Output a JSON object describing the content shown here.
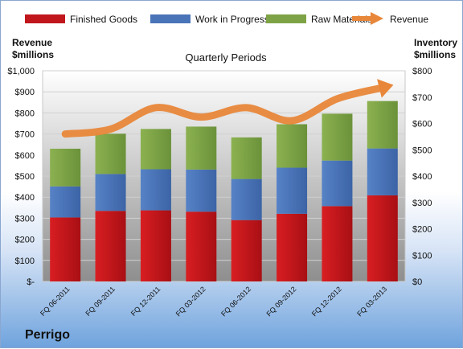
{
  "company": "Perrigo",
  "chart_data": {
    "type": "bar",
    "stacked": true,
    "title": "Quarterly Periods",
    "y_left_label": [
      "Revenue",
      "$millions"
    ],
    "y_right_label": [
      "Inventory",
      "$millions"
    ],
    "y_left_ticks": [
      "$-",
      "$100",
      "$200",
      "$300",
      "$400",
      "$500",
      "$600",
      "$700",
      "$800",
      "$900",
      "$1,000"
    ],
    "y_right_ticks": [
      "$0",
      "$100",
      "$200",
      "$300",
      "$400",
      "$500",
      "$600",
      "$700",
      "$800"
    ],
    "y_left_lim": [
      0,
      1000
    ],
    "y_right_lim": [
      0,
      800
    ],
    "grid": true,
    "legend_position": "top",
    "categories": [
      "FQ 06-2011",
      "FQ 09-2011",
      "FQ 12-2011",
      "FQ 03-2012",
      "FQ 06-2012",
      "FQ 09-2012",
      "FQ 12-2012",
      "FQ 03-2013"
    ],
    "series": [
      {
        "name": "Finished Goods",
        "type": "bar",
        "axis": "right",
        "color": "#c0161c",
        "values": [
          243,
          268,
          270,
          265,
          233,
          257,
          286,
          327
        ]
      },
      {
        "name": "Work in Progress",
        "type": "bar",
        "axis": "right",
        "color": "#4a74b8",
        "values": [
          118,
          140,
          156,
          160,
          156,
          175,
          173,
          178
        ]
      },
      {
        "name": "Raw Materials",
        "type": "bar",
        "axis": "right",
        "color": "#7ea346",
        "values": [
          143,
          153,
          153,
          163,
          158,
          165,
          178,
          180
        ]
      },
      {
        "name": "Revenue",
        "type": "line",
        "axis": "left",
        "color": "#e8873a",
        "values": [
          700,
          723,
          825,
          780,
          825,
          763,
          867,
          920
        ]
      }
    ]
  }
}
